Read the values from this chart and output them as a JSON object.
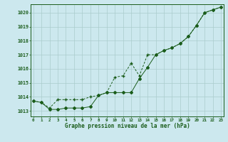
{
  "title": "Graphe pression niveau de la mer (hPa)",
  "bg_color": "#cce8ee",
  "grid_color": "#aacccc",
  "line_color": "#1a5c1a",
  "x_values": [
    0,
    1,
    2,
    3,
    4,
    5,
    6,
    7,
    8,
    9,
    10,
    11,
    12,
    13,
    14,
    15,
    16,
    17,
    18,
    19,
    20,
    21,
    22,
    23
  ],
  "series1": [
    1013.7,
    1013.6,
    1013.1,
    1013.1,
    1013.2,
    1013.2,
    1013.2,
    1013.3,
    1014.1,
    1014.3,
    1014.3,
    1014.3,
    1014.3,
    1015.3,
    1016.1,
    1017.0,
    1017.3,
    1017.5,
    1017.8,
    1018.3,
    1019.1,
    1020.0,
    1020.2,
    1020.4
  ],
  "series2": [
    1013.7,
    1013.6,
    1013.2,
    1013.8,
    1013.8,
    1013.8,
    1013.8,
    1014.0,
    1014.1,
    1014.3,
    1015.4,
    1015.5,
    1016.4,
    1015.5,
    1017.0,
    1017.0,
    1017.3,
    1017.5,
    1017.8,
    1018.3,
    1019.1,
    1020.0,
    1020.2,
    1020.4
  ],
  "ylim": [
    1012.6,
    1020.6
  ],
  "yticks": [
    1013,
    1014,
    1015,
    1016,
    1017,
    1018,
    1019,
    1020
  ],
  "xlim": [
    -0.3,
    23.3
  ],
  "xticks": [
    0,
    1,
    2,
    3,
    4,
    5,
    6,
    7,
    8,
    9,
    10,
    11,
    12,
    13,
    14,
    15,
    16,
    17,
    18,
    19,
    20,
    21,
    22,
    23
  ]
}
